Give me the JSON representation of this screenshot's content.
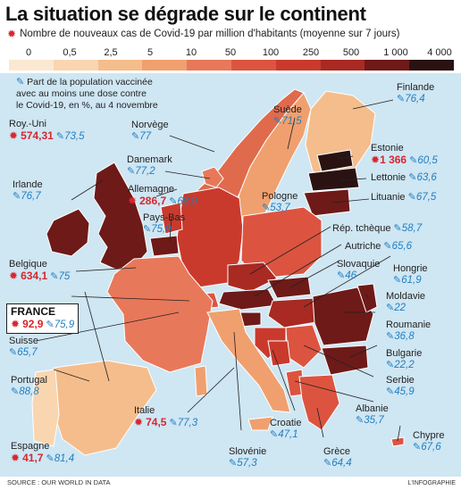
{
  "title": "La situation se dégrade sur le continent",
  "legend": {
    "subtitle": "Nombre de nouveaux cas de Covid-19 par million d'habitants (moyenne sur 7 jours)",
    "ticks": [
      "0",
      "0,5",
      "2,5",
      "5",
      "10",
      "50",
      "100",
      "250",
      "500",
      "1 000",
      "4 000"
    ],
    "colors": [
      "#fbe8d2",
      "#f9d6b0",
      "#f5bd8c",
      "#f0a06e",
      "#e8785a",
      "#dc5440",
      "#c93a2d",
      "#a82a22",
      "#6e1a18",
      "#2a1212"
    ]
  },
  "note": {
    "line1": "Part de la population vaccinée",
    "line2": "avec au moins une dose contre",
    "line3": "le Covid-19, en %, au 4 novembre"
  },
  "countries": {
    "finlande": {
      "name": "Finlande",
      "vax": "76,4"
    },
    "suede": {
      "name": "Suède",
      "vax": "71,5"
    },
    "norvege": {
      "name": "Norvège",
      "vax": "77"
    },
    "danemark": {
      "name": "Danemark",
      "vax": "77,2"
    },
    "royuni": {
      "name": "Roy.-Uni",
      "cases": "574,31",
      "vax": "73,5"
    },
    "irlande": {
      "name": "Irlande",
      "vax": "76,7"
    },
    "allemagne": {
      "name": "Allemagne",
      "cases": "286,7",
      "vax": "68,9"
    },
    "paysbas": {
      "name": "Pays-Bas",
      "vax": "75,9"
    },
    "pologne": {
      "name": "Pologne",
      "vax": "53,7"
    },
    "estonie": {
      "name": "Estonie",
      "cases": "1 366",
      "vax": "60,5"
    },
    "lettonie": {
      "name": "Lettonie",
      "vax": "63,6"
    },
    "lituanie": {
      "name": "Lituanie",
      "vax": "67,5"
    },
    "belgique": {
      "name": "Belgique",
      "cases": "634,1",
      "vax": "75"
    },
    "tcheque": {
      "name": "Rép. tchèque",
      "vax": "58,7"
    },
    "autriche": {
      "name": "Autriche",
      "vax": "65,6"
    },
    "slovaquie": {
      "name": "Slovaquie",
      "vax": "46"
    },
    "hongrie": {
      "name": "Hongrie",
      "vax": "61,9"
    },
    "france": {
      "name": "FRANCE",
      "cases": "92,9",
      "vax": "75,9"
    },
    "moldavie": {
      "name": "Moldavie",
      "vax": "22"
    },
    "suisse": {
      "name": "Suisse",
      "vax": "65,7"
    },
    "roumanie": {
      "name": "Roumanie",
      "vax": "36,8"
    },
    "bulgarie": {
      "name": "Bulgarie",
      "vax": "22,2"
    },
    "portugal": {
      "name": "Portugal",
      "vax": "88,8"
    },
    "serbie": {
      "name": "Serbie",
      "vax": "45,9"
    },
    "italie": {
      "name": "Italie",
      "cases": "74,5",
      "vax": "77,3"
    },
    "albanie": {
      "name": "Albanie",
      "vax": "35,7"
    },
    "croatie": {
      "name": "Croatie",
      "vax": "47,1"
    },
    "espagne": {
      "name": "Espagne",
      "cases": "41,7",
      "vax": "81,4"
    },
    "slovenie": {
      "name": "Slovénie",
      "vax": "57,3"
    },
    "grece": {
      "name": "Grèce",
      "vax": "64,4"
    },
    "chypre": {
      "name": "Chypre",
      "vax": "67,6"
    }
  },
  "source": "SOURCE : OUR WORLD IN DATA",
  "credit": "L'INFOGRAPHIE"
}
